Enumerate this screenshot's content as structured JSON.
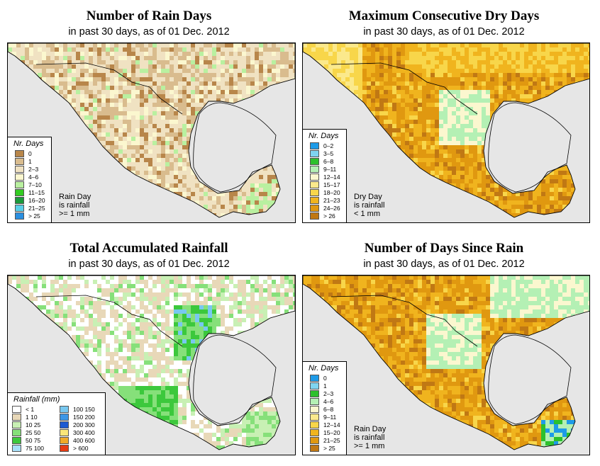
{
  "panels": [
    {
      "id": "rain_days",
      "title": "Number of Rain Days",
      "subtitle": "in past 30 days, as of  01 Dec. 2012",
      "legend_title": "Nr. Days",
      "legend": [
        {
          "label": "0",
          "color": "#b8864a"
        },
        {
          "label": "1",
          "color": "#d9bc8e"
        },
        {
          "label": "2–3",
          "color": "#f0e2c2"
        },
        {
          "label": "4–6",
          "color": "#fbf7cf"
        },
        {
          "label": "7–10",
          "color": "#b9f0a0"
        },
        {
          "label": "11–15",
          "color": "#33cc22"
        },
        {
          "label": "16–20",
          "color": "#1a9a3a"
        },
        {
          "label": "21–25",
          "color": "#5ad0e8"
        },
        {
          "label": "> 25",
          "color": "#2a8fe0"
        }
      ],
      "note": [
        "Rain Day",
        "is rainfall",
        ">= 1 mm"
      ]
    },
    {
      "id": "max_dry",
      "title": "Maximum Consecutive Dry Days",
      "subtitle": "in past 30 days, as of  01 Dec. 2012",
      "legend_title": "Nr. Days",
      "legend": [
        {
          "label": "0–2",
          "color": "#1e9be8"
        },
        {
          "label": "3–5",
          "color": "#7fd4f0"
        },
        {
          "label": "6–8",
          "color": "#2cc02c"
        },
        {
          "label": "9–11",
          "color": "#b4f0b4"
        },
        {
          "label": "12–14",
          "color": "#fbf7cf"
        },
        {
          "label": "15–17",
          "color": "#fbe98c"
        },
        {
          "label": "18–20",
          "color": "#f8d64a"
        },
        {
          "label": "21–23",
          "color": "#f0b41e"
        },
        {
          "label": "24–26",
          "color": "#e09810"
        },
        {
          "label": "> 26",
          "color": "#c07814"
        }
      ],
      "note": [
        "Dry Day",
        "is rainfall",
        "< 1 mm"
      ]
    },
    {
      "id": "total_rain",
      "title": "Total Accumulated Rainfall",
      "subtitle": "in past 30 days, as of  01 Dec. 2012",
      "legend_title": "Rainfall (mm)",
      "legend": [
        {
          "label": "< 1",
          "color": "#ffffff"
        },
        {
          "label": "1    10",
          "color": "#e8d8b8"
        },
        {
          "label": "10   25",
          "color": "#c8f0b4"
        },
        {
          "label": "25   50",
          "color": "#86e07a"
        },
        {
          "label": "50   75",
          "color": "#3cc83c"
        },
        {
          "label": "75  100",
          "color": "#a8e0f8"
        },
        {
          "label": "100  150",
          "color": "#78c8f0"
        },
        {
          "label": "150  200",
          "color": "#3c96e6"
        },
        {
          "label": "200  300",
          "color": "#1e5ad2"
        },
        {
          "label": "300  400",
          "color": "#fae678"
        },
        {
          "label": "400  600",
          "color": "#f0aa28"
        },
        {
          "label": "> 600",
          "color": "#e63c14"
        }
      ],
      "note": []
    },
    {
      "id": "since_rain",
      "title": "Number of Days Since Rain",
      "subtitle": "in past 30 days, as of  01 Dec. 2012",
      "legend_title": "Nr. Days",
      "legend": [
        {
          "label": "0",
          "color": "#1e9be8"
        },
        {
          "label": "1",
          "color": "#7fd4f0"
        },
        {
          "label": "2–3",
          "color": "#2cc02c"
        },
        {
          "label": "4–6",
          "color": "#b4f0b4"
        },
        {
          "label": "6–8",
          "color": "#fbf7cf"
        },
        {
          "label": "9–11",
          "color": "#fbe98c"
        },
        {
          "label": "12–14",
          "color": "#f8d64a"
        },
        {
          "label": "15–20",
          "color": "#f0b41e"
        },
        {
          "label": "21–25",
          "color": "#e09810"
        },
        {
          "label": "> 25",
          "color": "#c07814"
        }
      ],
      "note": [
        "Rain Day",
        "is rainfall",
        ">= 1 mm"
      ]
    }
  ]
}
